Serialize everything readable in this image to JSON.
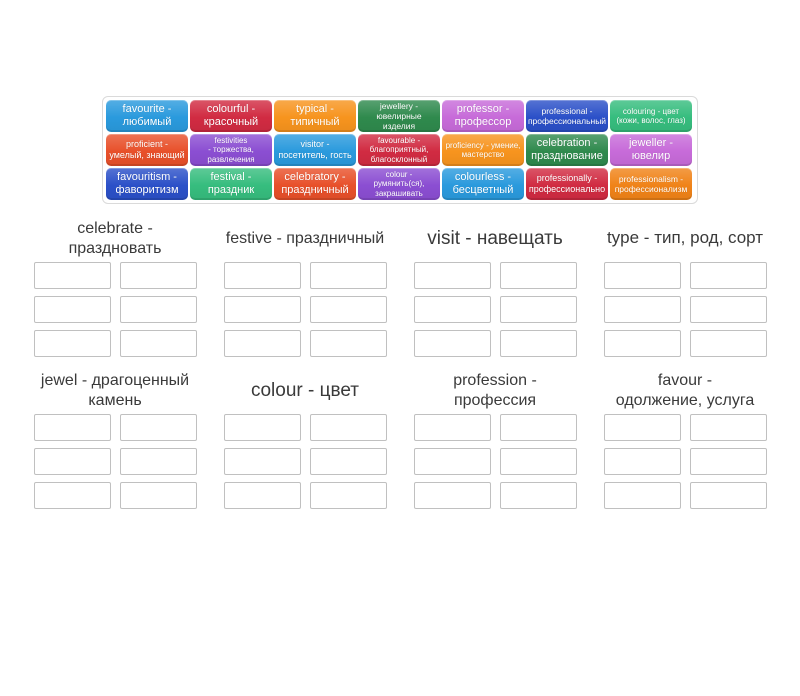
{
  "colors": {
    "tray_border": "#dadada",
    "slot_border": "#c0c0c0",
    "group_title_text": "#3a3a3a",
    "tile_text": "#ffffff"
  },
  "tray": {
    "tiles": [
      {
        "label": "favourite -\nлюбимый",
        "color": "#2a9add",
        "size": "lg"
      },
      {
        "label": "colourful -\nкрасочный",
        "color": "#d12b42",
        "size": "lg"
      },
      {
        "label": "typical -\nтипичный",
        "color": "#f7941e",
        "size": "lg"
      },
      {
        "label": "jewellery -\nювелирные изделия",
        "color": "#2f8a4d",
        "size": "sm"
      },
      {
        "label": "professor -\nпрофессор",
        "color": "#c76bd9",
        "size": "lg"
      },
      {
        "label": "professional -\nпрофессиональный",
        "color": "#2b50c8",
        "size": "sm"
      },
      {
        "label": "colouring - цвет\n(кожи, волос, глаз)",
        "color": "#36bd7e",
        "size": "xs"
      },
      {
        "label": "proficient -\nумелый, знающий",
        "color": "#e8502a",
        "size": "md"
      },
      {
        "label": "festivities\n- торжества,\nразвлечения",
        "color": "#8b4ed2",
        "size": "xs"
      },
      {
        "label": "visitor -\nпосетитель, гость",
        "color": "#2a9add",
        "size": "md"
      },
      {
        "label": "favourable -\nблагоприятный,\nблагосклонный",
        "color": "#d12b42",
        "size": "xs"
      },
      {
        "label": "proficiency - умение,\nмастерство",
        "color": "#f7941e",
        "size": "xs"
      },
      {
        "label": "celebration -\nпразднование",
        "color": "#2f8a4d",
        "size": "lg"
      },
      {
        "label": "jeweller -\nювелир",
        "color": "#c76bd9",
        "size": "lg"
      },
      {
        "label": "favouritism -\nфаворитизм",
        "color": "#2b50c8",
        "size": "lg"
      },
      {
        "label": "festival -\nпраздник",
        "color": "#36bd7e",
        "size": "lg"
      },
      {
        "label": "celebratory -\nпраздничный",
        "color": "#e8502a",
        "size": "lg"
      },
      {
        "label": "colour -\nрумянить(ся),\nзакрашивать",
        "color": "#8b4ed2",
        "size": "xs"
      },
      {
        "label": "colourless -\nбесцветный",
        "color": "#2a9add",
        "size": "lg"
      },
      {
        "label": "professionally -\nпрофессионально",
        "color": "#d12b42",
        "size": "md"
      },
      {
        "label": "professionalism -\nпрофессионализм",
        "color": "#f08318",
        "size": "sm"
      }
    ]
  },
  "groups": [
    {
      "title": "celebrate -\nпраздновать",
      "title_size": "sm",
      "slots": 6
    },
    {
      "title": "festive - праздничный",
      "title_size": "sm",
      "slots": 6
    },
    {
      "title": "visit - навещать",
      "title_size": "lg",
      "slots": 6
    },
    {
      "title": "type - тип, род, сорт",
      "title_size": "md",
      "slots": 6
    },
    {
      "title": "jewel - драгоценный\nкамень",
      "title_size": "sm",
      "slots": 6
    },
    {
      "title": "colour - цвет",
      "title_size": "lg",
      "slots": 6
    },
    {
      "title": "profession -\nпрофессия",
      "title_size": "sm",
      "slots": 6
    },
    {
      "title": "favour -\nодолжение, услуга",
      "title_size": "sm",
      "slots": 6
    }
  ]
}
